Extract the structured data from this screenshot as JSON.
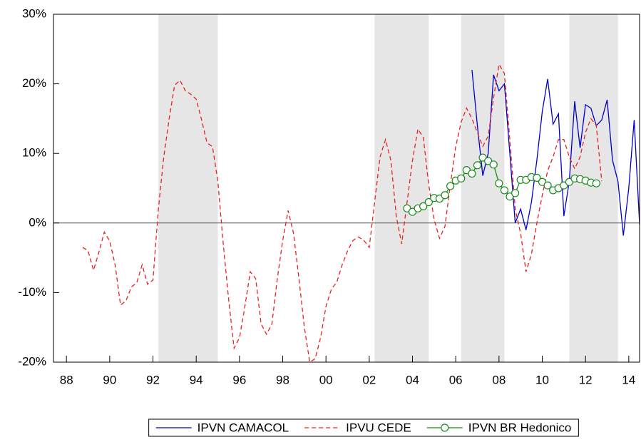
{
  "chart_data": {
    "type": "line",
    "xlim": [
      1987.4,
      2014.5
    ],
    "ylim": [
      -20,
      30
    ],
    "yticks": [
      {
        "value": -20,
        "label": "-20%"
      },
      {
        "value": -10,
        "label": "-10%"
      },
      {
        "value": 0,
        "label": "0%"
      },
      {
        "value": 10,
        "label": "10%"
      },
      {
        "value": 20,
        "label": "20%"
      },
      {
        "value": 30,
        "label": "30%"
      }
    ],
    "xticks": [
      {
        "value": 1988,
        "label": "88"
      },
      {
        "value": 1990,
        "label": "90"
      },
      {
        "value": 1992,
        "label": "92"
      },
      {
        "value": 1994,
        "label": "94"
      },
      {
        "value": 1996,
        "label": "96"
      },
      {
        "value": 1998,
        "label": "98"
      },
      {
        "value": 2000,
        "label": "00"
      },
      {
        "value": 2002,
        "label": "02"
      },
      {
        "value": 2004,
        "label": "04"
      },
      {
        "value": 2006,
        "label": "06"
      },
      {
        "value": 2008,
        "label": "08"
      },
      {
        "value": 2010,
        "label": "10"
      },
      {
        "value": 2012,
        "label": "12"
      },
      {
        "value": 2014,
        "label": "14"
      }
    ],
    "zero_line": true,
    "shaded_periods": [
      [
        1992.25,
        1995.0
      ],
      [
        2002.25,
        2004.75
      ],
      [
        2006.25,
        2008.25
      ],
      [
        2011.25,
        2013.5
      ]
    ],
    "shade_color": "#e6e6e6",
    "legend_position": "bottom",
    "series": [
      {
        "name": "IPVN CAMACOL",
        "color": "#0000cc",
        "style": "solid",
        "marker": "none",
        "x": [
          2006.75,
          2007.0,
          2007.25,
          2007.5,
          2007.75,
          2008.0,
          2008.25,
          2008.5,
          2008.75,
          2009.0,
          2009.25,
          2009.5,
          2009.75,
          2010.0,
          2010.25,
          2010.5,
          2010.75,
          2011.0,
          2011.25,
          2011.5,
          2011.75,
          2012.0,
          2012.25,
          2012.5,
          2012.75,
          2013.0,
          2013.25,
          2013.5,
          2013.75,
          2014.0,
          2014.25,
          2014.5
        ],
        "values": [
          22,
          14,
          6.8,
          10,
          21.3,
          19,
          20,
          10,
          0,
          2,
          -1,
          3,
          9,
          16,
          20.7,
          14.2,
          15.7,
          1,
          6,
          17.5,
          10.8,
          17,
          16.5,
          14,
          14.8,
          17.7,
          9,
          6,
          -1.8,
          5,
          14.8,
          -0.2
        ]
      },
      {
        "name": "IPVU CEDE",
        "color": "#e8231e",
        "style": "dashed",
        "marker": "none",
        "x": [
          1988.75,
          1989.0,
          1989.25,
          1989.5,
          1989.75,
          1990.0,
          1990.25,
          1990.5,
          1990.75,
          1991.0,
          1991.25,
          1991.5,
          1991.75,
          1992.0,
          1992.25,
          1992.5,
          1992.75,
          1993.0,
          1993.25,
          1993.5,
          1993.75,
          1994.0,
          1994.25,
          1994.5,
          1994.75,
          1995.0,
          1995.25,
          1995.5,
          1995.75,
          1996.0,
          1996.25,
          1996.5,
          1996.75,
          1997.0,
          1997.25,
          1997.5,
          1997.75,
          1998.0,
          1998.25,
          1998.5,
          1998.75,
          1999.0,
          1999.25,
          1999.5,
          1999.75,
          2000.0,
          2000.25,
          2000.5,
          2000.75,
          2001.0,
          2001.25,
          2001.5,
          2001.75,
          2002.0,
          2002.25,
          2002.5,
          2002.75,
          2003.0,
          2003.25,
          2003.5,
          2003.75,
          2004.0,
          2004.25,
          2004.5,
          2004.75,
          2005.0,
          2005.25,
          2005.5,
          2005.75,
          2006.0,
          2006.25,
          2006.5,
          2006.75,
          2007.0,
          2007.25,
          2007.5,
          2007.75,
          2008.0,
          2008.25,
          2008.5,
          2008.75,
          2009.0,
          2009.25,
          2009.5,
          2009.75,
          2010.0,
          2010.25,
          2010.5,
          2010.75,
          2011.0,
          2011.25,
          2011.5,
          2011.75,
          2012.0,
          2012.25,
          2012.5,
          2012.75
        ],
        "values": [
          -3.5,
          -4,
          -6.8,
          -4.2,
          -1.3,
          -2.6,
          -6,
          -11.8,
          -11.2,
          -9.2,
          -8.6,
          -6,
          -8.8,
          -8.2,
          2,
          9.5,
          15,
          19.8,
          20.5,
          19,
          18.5,
          17.8,
          14.8,
          11.5,
          11,
          6,
          -3,
          -11,
          -18,
          -16.5,
          -12,
          -7,
          -8,
          -14.5,
          -16,
          -14.5,
          -8,
          -2.5,
          1.8,
          -1.5,
          -8,
          -15,
          -20,
          -19.5,
          -16.5,
          -12,
          -9.5,
          -8.5,
          -6,
          -4,
          -2.5,
          -2,
          -2.5,
          -3.5,
          3,
          9.5,
          12,
          9,
          1,
          -3,
          3,
          9,
          13.5,
          12.3,
          5.5,
          0.5,
          -2.2,
          -0.5,
          5.5,
          11,
          14.5,
          16.5,
          15,
          13,
          11,
          12.5,
          18,
          22.8,
          21.5,
          12,
          2,
          -1.5,
          -7,
          -4.5,
          0,
          4,
          7.5,
          9.5,
          12,
          12,
          9.5,
          7.8,
          9.5,
          13,
          15,
          14,
          6
        ]
      },
      {
        "name": "IPVN BR Hedonico",
        "color": "#1a8a1a",
        "style": "solid",
        "marker": "circle",
        "x": [
          2003.75,
          2004.0,
          2004.25,
          2004.5,
          2004.75,
          2005.0,
          2005.25,
          2005.5,
          2005.75,
          2006.0,
          2006.25,
          2006.5,
          2006.75,
          2007.0,
          2007.25,
          2007.5,
          2007.75,
          2008.0,
          2008.25,
          2008.5,
          2008.75,
          2009.0,
          2009.25,
          2009.5,
          2009.75,
          2010.0,
          2010.25,
          2010.5,
          2010.75,
          2011.0,
          2011.25,
          2011.5,
          2011.75,
          2012.0,
          2012.25,
          2012.5
        ],
        "values": [
          2.1,
          1.6,
          2.1,
          2.4,
          3.0,
          3.6,
          3.5,
          4.0,
          5.3,
          6.1,
          6.4,
          7.6,
          7.1,
          8.3,
          9.4,
          8.9,
          8.4,
          5.7,
          4.7,
          3.8,
          4.3,
          6.2,
          6.2,
          6.6,
          6.5,
          5.9,
          5.4,
          4.7,
          5.0,
          5.4,
          5.9,
          6.4,
          6.3,
          6.1,
          5.8,
          5.7
        ]
      }
    ]
  }
}
